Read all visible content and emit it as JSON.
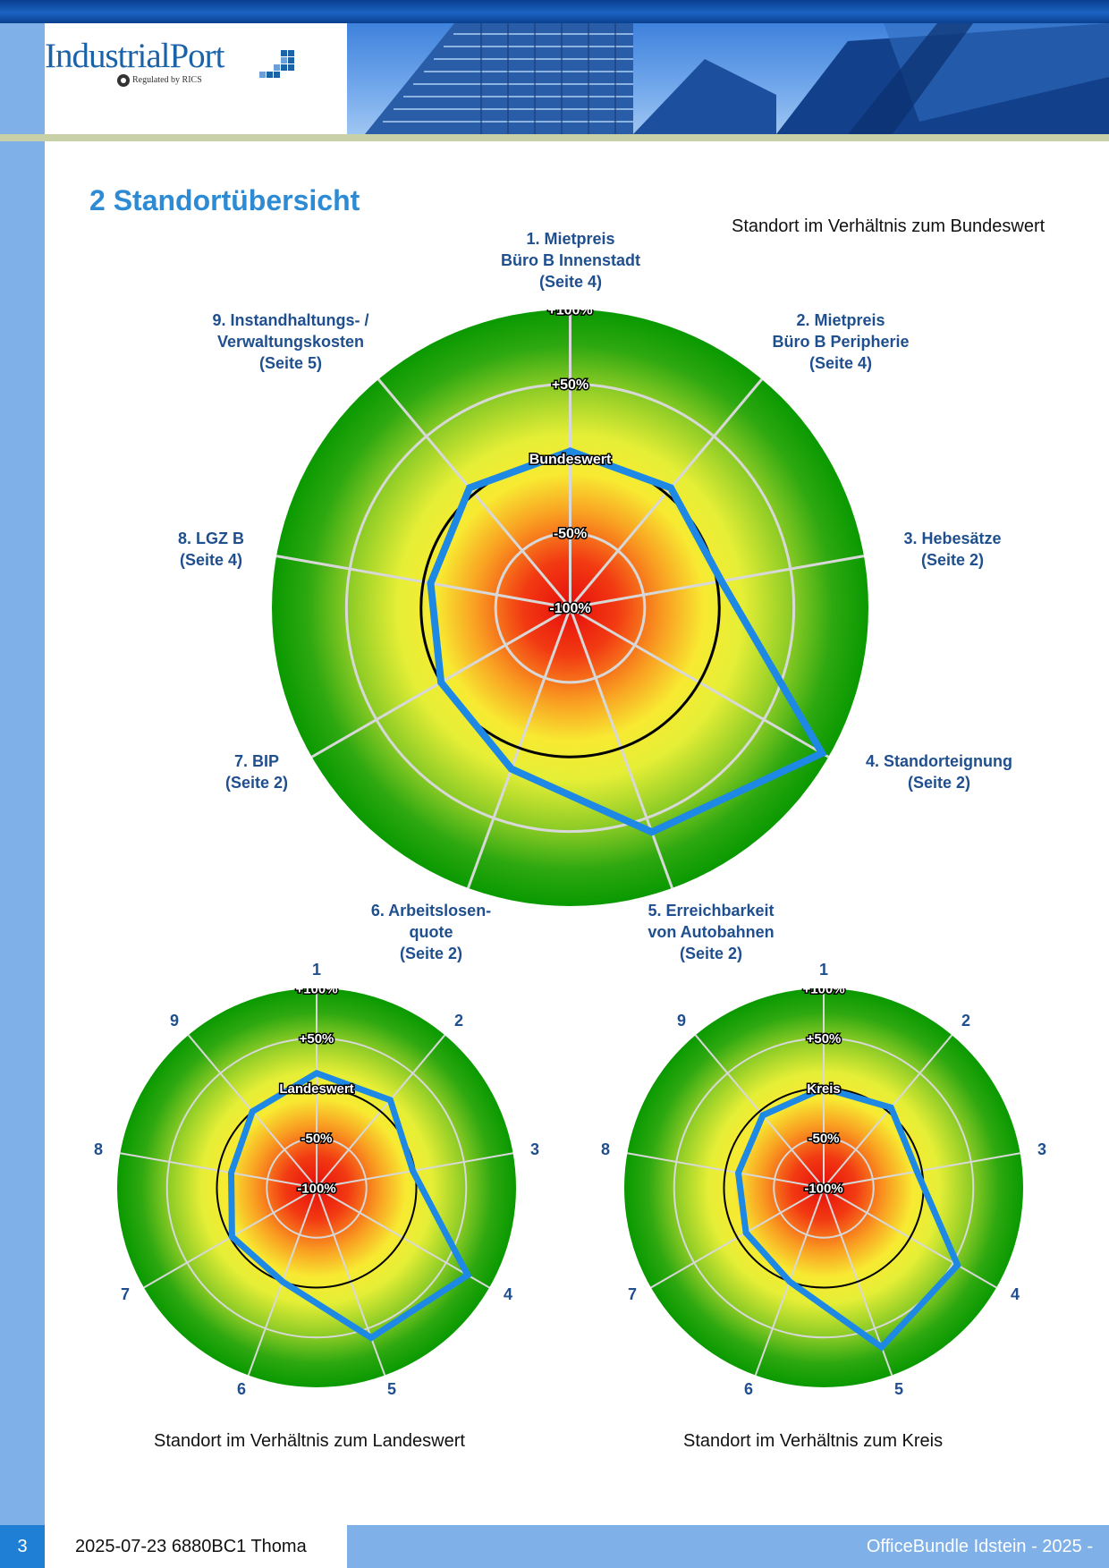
{
  "header": {
    "logo_text_industrial": "Industrial",
    "logo_text_port": "Port",
    "logo_subtitle": "Regulated by RICS"
  },
  "page_title": "2 Standortübersicht",
  "main_chart": {
    "caption": "Standort im Verhältnis zum Bundeswert",
    "axes": [
      {
        "lines": [
          "1. Mietpreis",
          "Büro B Innenstadt",
          "(Seite 4)"
        ]
      },
      {
        "lines": [
          "2. Mietpreis",
          "Büro B Peripherie",
          "(Seite 4)"
        ]
      },
      {
        "lines": [
          "3. Hebesätze",
          "(Seite 2)"
        ]
      },
      {
        "lines": [
          "4. Standorteignung",
          "(Seite 2)"
        ]
      },
      {
        "lines": [
          "5. Erreichbarkeit",
          "von Autobahnen",
          "(Seite 2)"
        ]
      },
      {
        "lines": [
          "6. Arbeitslosen-",
          "quote",
          "(Seite 2)"
        ]
      },
      {
        "lines": [
          "7. BIP",
          "(Seite 2)"
        ]
      },
      {
        "lines": [
          "8. LGZ B",
          "(Seite 4)"
        ]
      },
      {
        "lines": [
          "9. Instandhaltungs- /",
          "Verwaltungskosten",
          "(Seite 5)"
        ]
      }
    ]
  },
  "landes_chart": {
    "caption": "Standort im Verhältnis zum Landeswert"
  },
  "kreis_chart": {
    "caption": "Standort im Verhältnis zum Kreis"
  },
  "small_axis_numbers": [
    "1",
    "2",
    "3",
    "4",
    "5",
    "6",
    "7",
    "8",
    "9"
  ],
  "chart_data": [
    {
      "type": "radar",
      "title": "Standort im Verhältnis zum Bundeswert",
      "reference_label": "Bundeswert",
      "tick_labels": [
        "+100%",
        "+50%",
        "Bundeswert",
        "-50%",
        "-100%"
      ],
      "range": [
        -100,
        100
      ],
      "categories": [
        "1. Mietpreis Büro B Innenstadt (Seite 4)",
        "2. Mietpreis Büro B Peripherie (Seite 4)",
        "3. Hebesätze (Seite 2)",
        "4. Standorteignung (Seite 2)",
        "5. Erreichbarkeit von Autobahnen (Seite 2)",
        "6. Arbeitslosenquote (Seite 2)",
        "7. BIP (Seite 2)",
        "8. LGZ B (Seite 4)",
        "9. Instandhaltungs- / Verwaltungskosten (Seite 5)"
      ],
      "values": [
        5,
        5,
        3,
        95,
        60,
        15,
        0,
        -5,
        5
      ],
      "colors": {
        "series": "#1e88e5",
        "reference": "#000000"
      }
    },
    {
      "type": "radar",
      "title": "Standort im Verhältnis zum Landeswert",
      "reference_label": "Landeswert",
      "tick_labels": [
        "+100%",
        "+50%",
        "Landeswert",
        "-50%",
        "-100%"
      ],
      "range": [
        -100,
        100
      ],
      "categories": [
        "1",
        "2",
        "3",
        "4",
        "5",
        "6",
        "7",
        "8",
        "9"
      ],
      "values": [
        15,
        15,
        -2,
        75,
        60,
        0,
        -2,
        -13,
        0
      ],
      "colors": {
        "series": "#1e88e5",
        "reference": "#000000"
      }
    },
    {
      "type": "radar",
      "title": "Standort im Verhältnis zum Kreis",
      "reference_label": "Kreis",
      "tick_labels": [
        "+100%",
        "+50%",
        "Kreis",
        "-50%",
        "-100%"
      ],
      "range": [
        -100,
        100
      ],
      "categories": [
        "1",
        "2",
        "3",
        "4",
        "5",
        "6",
        "7",
        "8",
        "9"
      ],
      "values": [
        0,
        5,
        -5,
        55,
        70,
        0,
        -10,
        -13,
        -5
      ],
      "colors": {
        "series": "#1e88e5",
        "reference": "#000000"
      }
    }
  ],
  "footer": {
    "page_number": "3",
    "meta": "2025-07-23 6880BC1 Thoma",
    "doc_title": "OfficeBundle Idstein - 2025 -"
  }
}
